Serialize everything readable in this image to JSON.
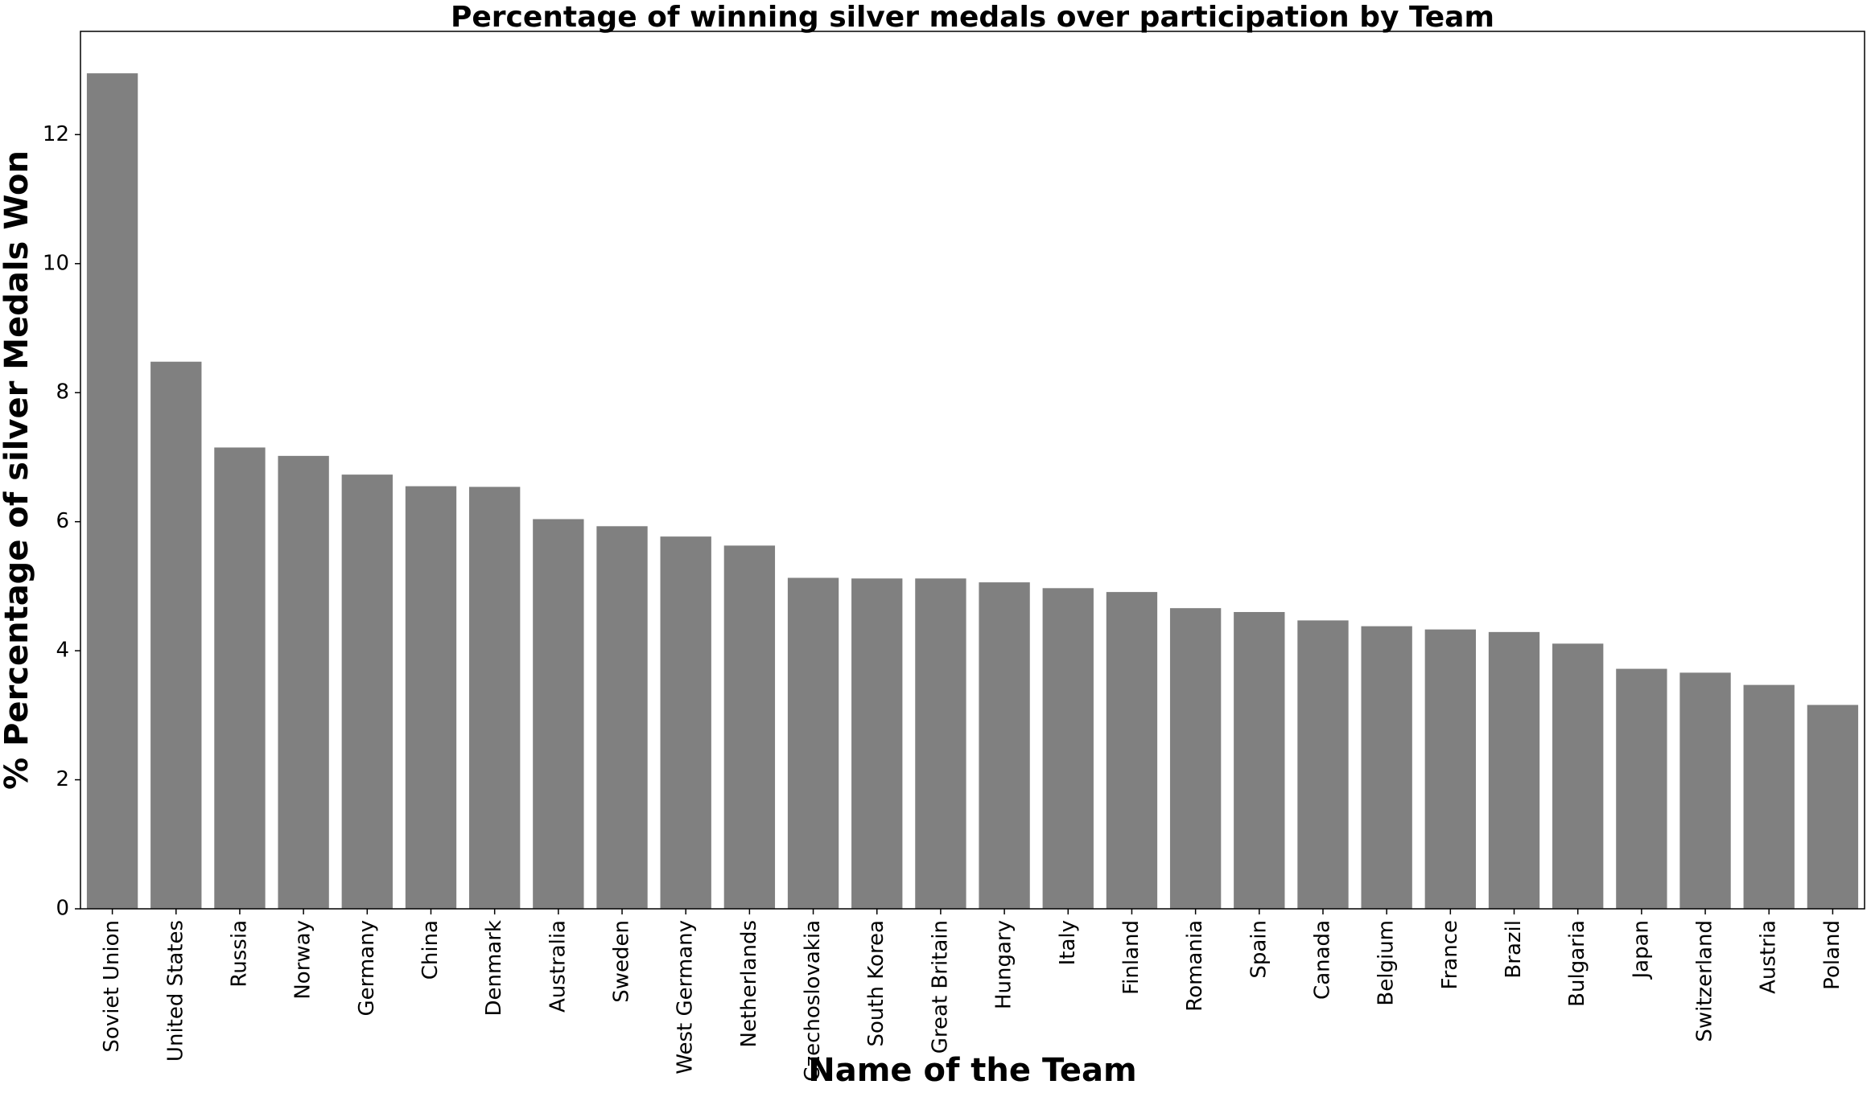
{
  "chart_data": {
    "type": "bar",
    "title": "Percentage of winning silver medals over participation by Team",
    "xlabel": "Name of the Team",
    "ylabel": "% Percentage of silver Medals Won",
    "categories": [
      "Soviet Union",
      "United States",
      "Russia",
      "Norway",
      "Germany",
      "China",
      "Denmark",
      "Australia",
      "Sweden",
      "West Germany",
      "Netherlands",
      "Czechoslovakia",
      "South Korea",
      "Great Britain",
      "Hungary",
      "Italy",
      "Finland",
      "Romania",
      "Spain",
      "Canada",
      "Belgium",
      "France",
      "Brazil",
      "Bulgaria",
      "Japan",
      "Switzerland",
      "Austria",
      "Poland"
    ],
    "values": [
      12.95,
      8.48,
      7.15,
      7.02,
      6.73,
      6.55,
      6.54,
      6.04,
      5.93,
      5.77,
      5.63,
      5.13,
      5.12,
      5.12,
      5.06,
      4.97,
      4.91,
      4.66,
      4.6,
      4.47,
      4.38,
      4.33,
      4.29,
      4.11,
      3.72,
      3.66,
      3.47,
      3.16
    ],
    "yticks": [
      0,
      2,
      4,
      6,
      8,
      10,
      12
    ],
    "ylim": [
      0,
      13.6
    ],
    "bar_color": "#808080",
    "grid": false,
    "legend": "none"
  }
}
